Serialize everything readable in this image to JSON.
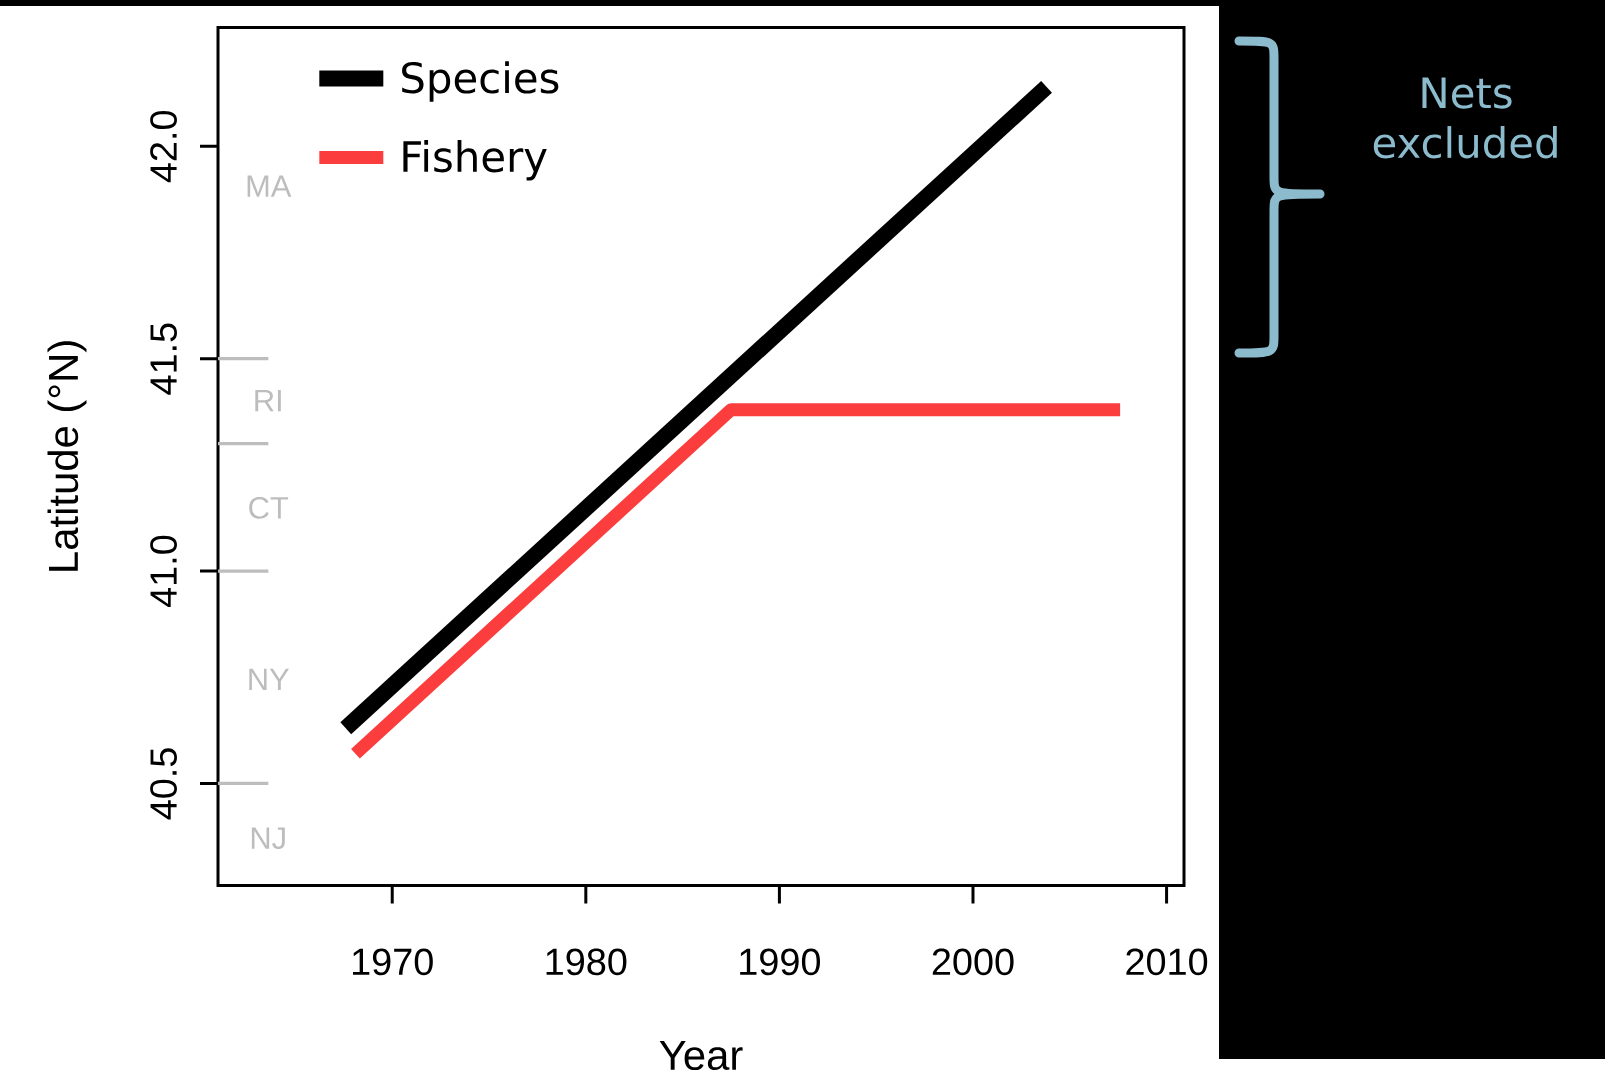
{
  "chart_data": {
    "type": "line",
    "xlabel": "Year",
    "ylabel": "Latitude (°N)",
    "xlim": [
      1961.0,
      2010.9
    ],
    "ylim": [
      40.26,
      42.28
    ],
    "xticks": [
      1970,
      1980,
      1990,
      2000,
      2010
    ],
    "yticks": [
      {
        "value": 40.5,
        "label": "40.5"
      },
      {
        "value": 41.0,
        "label": "41.0"
      },
      {
        "value": 41.5,
        "label": "41.5"
      },
      {
        "value": 42.0,
        "label": "42.0"
      }
    ],
    "legend": "top left",
    "series": [
      {
        "name": "Species",
        "color": "#000000",
        "x": [
          1967.6,
          2003.8
        ],
        "values": [
          40.63,
          42.14
        ]
      },
      {
        "name": "Fishery",
        "color": "#fc3d3d",
        "x": [
          1968.1,
          1987.5,
          2007.6
        ],
        "values": [
          40.57,
          41.38,
          41.38
        ]
      },
      {
        "color": "#bdbdbd",
        "x": [
          1961.0,
          1963.6
        ],
        "values": [
          41.5,
          41.5
        ]
      },
      {
        "color": "#bdbdbd",
        "x": [
          1961.0,
          1963.6
        ],
        "values": [
          41.3,
          41.3
        ]
      },
      {
        "color": "#bdbdbd",
        "x": [
          1961.0,
          1963.6
        ],
        "values": [
          41.0,
          41.0
        ]
      },
      {
        "color": "#bdbdbd",
        "x": [
          1961.0,
          1963.6
        ],
        "values": [
          40.5,
          40.5
        ]
      }
    ],
    "annotations": [
      "MA",
      "RI",
      "CT",
      "NY",
      "NJ",
      "Nets excluded"
    ]
  }
}
